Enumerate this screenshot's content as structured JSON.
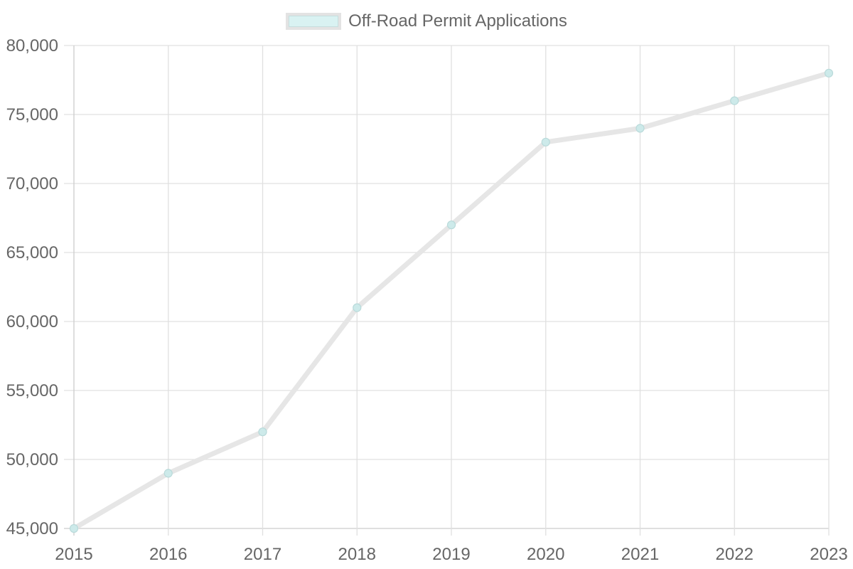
{
  "legend": {
    "label": "Off-Road Permit Applications",
    "swatch_fill": "#d9f2f2",
    "swatch_border": "#e3e3e3"
  },
  "colors": {
    "line": "#e6e6e6",
    "point_fill": "#cdeaea",
    "point_stroke": "#b9dada",
    "grid": "#e0e0e0",
    "axis": "#cccccc",
    "text": "#666666"
  },
  "chart_data": {
    "type": "line",
    "title": "",
    "xlabel": "",
    "ylabel": "",
    "categories": [
      "2015",
      "2016",
      "2017",
      "2018",
      "2019",
      "2020",
      "2021",
      "2022",
      "2023"
    ],
    "series": [
      {
        "name": "Off-Road Permit Applications",
        "values": [
          45000,
          49000,
          52000,
          61000,
          67000,
          73000,
          74000,
          76000,
          78000
        ]
      }
    ],
    "ylim": [
      45000,
      80000
    ],
    "yticks": [
      45000,
      50000,
      55000,
      60000,
      65000,
      70000,
      75000,
      80000
    ],
    "ytick_labels": [
      "45,000",
      "50,000",
      "55,000",
      "60,000",
      "65,000",
      "70,000",
      "75,000",
      "80,000"
    ],
    "grid": true,
    "legend_position": "top"
  }
}
